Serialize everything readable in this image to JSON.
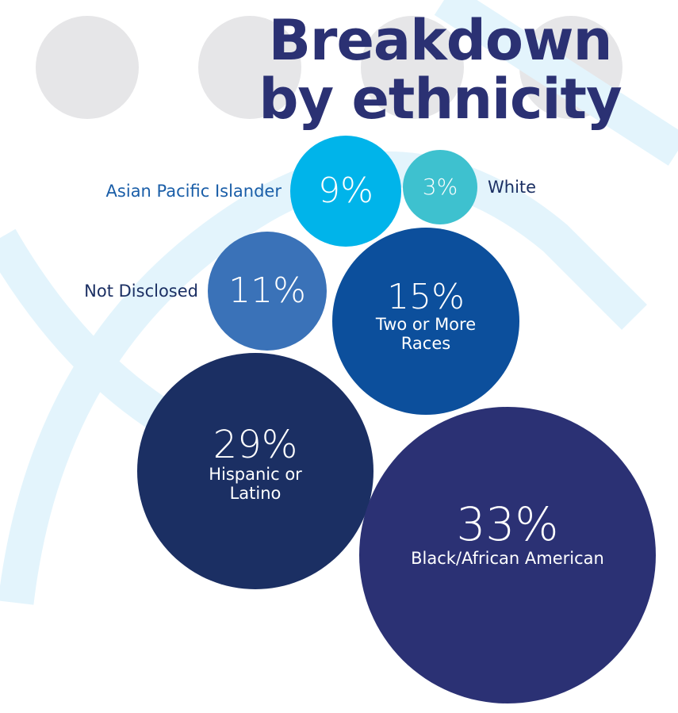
{
  "chart_data": {
    "type": "bubble",
    "title": "Breakdown by ethnicity",
    "categories": [
      "Asian Pacific Islander",
      "White",
      "Not Disclosed",
      "Two or More Races",
      "Hispanic or Latino",
      "Black/African American"
    ],
    "values": [
      9,
      3,
      11,
      15,
      29,
      33
    ],
    "value_labels": [
      "9%",
      "3%",
      "11%",
      "15%",
      "29%",
      "33%"
    ],
    "colors": [
      "#00b4ea",
      "#3ec1cf",
      "#3a72b8",
      "#0c4f9c",
      "#1b2f63",
      "#2b3174"
    ]
  }
}
